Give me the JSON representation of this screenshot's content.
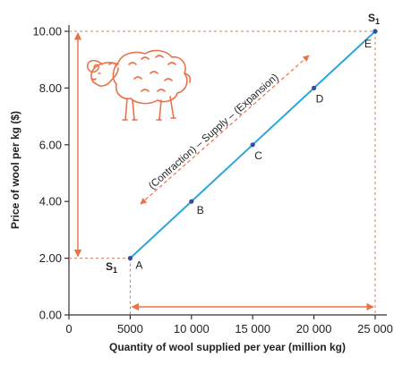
{
  "chart_data": {
    "type": "line",
    "title": "",
    "xlabel": "Quantity of wool supplied per year (million kg)",
    "ylabel": "Price of wool per kg ($)",
    "xlim": [
      0,
      25000
    ],
    "ylim": [
      0,
      10
    ],
    "x_ticks": [
      0,
      5000,
      10000,
      15000,
      20000,
      25000
    ],
    "x_tick_labels": [
      "0",
      "5000",
      "10 000",
      "15 000",
      "20 000",
      "25 000"
    ],
    "y_ticks": [
      0,
      2,
      4,
      6,
      8,
      10
    ],
    "y_tick_labels": [
      "0.00",
      "2.00",
      "4.00",
      "6.00",
      "8.00",
      "10.00"
    ],
    "series": [
      {
        "name": "S1",
        "x": [
          5000,
          10000,
          15000,
          20000,
          25000
        ],
        "y": [
          2,
          4,
          6,
          8,
          10
        ],
        "point_labels": [
          "A",
          "B",
          "C",
          "D",
          "E"
        ]
      }
    ],
    "curve_label_start": "S",
    "curve_label_end": "S",
    "curve_label_subscript": "1",
    "annotation": "(Contraction) – Supply – (Expansion)",
    "grid": false,
    "colors": {
      "line": "#2aa6dc",
      "points": "#3a4a9c",
      "annotation": "#e8734a",
      "guides": "#e8734a",
      "axis": "#333333"
    },
    "illustration": "sheep-icon"
  }
}
